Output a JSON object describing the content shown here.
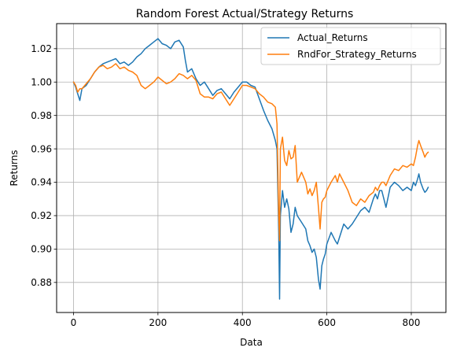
{
  "chart_data": {
    "type": "line",
    "title": "Random Forest Actual/Strategy Returns",
    "xlabel": "Data",
    "ylabel": "Returns",
    "xlim": [
      -40,
      882
    ],
    "ylim": [
      0.862,
      1.035
    ],
    "xticks": [
      0,
      200,
      400,
      600,
      800
    ],
    "yticks": [
      0.88,
      0.9,
      0.92,
      0.94,
      0.96,
      0.98,
      1.0,
      1.02
    ],
    "grid": true,
    "legend_position": "upper right",
    "series": [
      {
        "name": "Actual_Returns",
        "color": "#1f77b4",
        "points": [
          [
            0,
            1.0
          ],
          [
            5,
            0.997
          ],
          [
            10,
            0.993
          ],
          [
            15,
            0.989
          ],
          [
            20,
            0.996
          ],
          [
            30,
            0.998
          ],
          [
            40,
            1.002
          ],
          [
            50,
            1.006
          ],
          [
            60,
            1.009
          ],
          [
            70,
            1.011
          ],
          [
            80,
            1.012
          ],
          [
            90,
            1.013
          ],
          [
            100,
            1.014
          ],
          [
            110,
            1.011
          ],
          [
            120,
            1.012
          ],
          [
            130,
            1.01
          ],
          [
            140,
            1.012
          ],
          [
            150,
            1.015
          ],
          [
            160,
            1.017
          ],
          [
            170,
            1.02
          ],
          [
            180,
            1.022
          ],
          [
            190,
            1.024
          ],
          [
            200,
            1.026
          ],
          [
            210,
            1.023
          ],
          [
            220,
            1.022
          ],
          [
            230,
            1.02
          ],
          [
            240,
            1.024
          ],
          [
            250,
            1.025
          ],
          [
            260,
            1.021
          ],
          [
            265,
            1.013
          ],
          [
            270,
            1.006
          ],
          [
            280,
            1.008
          ],
          [
            290,
            1.002
          ],
          [
            300,
            0.998
          ],
          [
            310,
            1.0
          ],
          [
            320,
            0.996
          ],
          [
            330,
            0.992
          ],
          [
            340,
            0.995
          ],
          [
            350,
            0.996
          ],
          [
            360,
            0.993
          ],
          [
            370,
            0.99
          ],
          [
            380,
            0.994
          ],
          [
            390,
            0.997
          ],
          [
            400,
            1.0
          ],
          [
            410,
            1.0
          ],
          [
            420,
            0.998
          ],
          [
            430,
            0.997
          ],
          [
            440,
            0.99
          ],
          [
            450,
            0.983
          ],
          [
            460,
            0.977
          ],
          [
            470,
            0.972
          ],
          [
            478,
            0.965
          ],
          [
            482,
            0.96
          ],
          [
            486,
            0.91
          ],
          [
            488,
            0.87
          ],
          [
            490,
            0.92
          ],
          [
            495,
            0.935
          ],
          [
            500,
            0.925
          ],
          [
            505,
            0.93
          ],
          [
            510,
            0.924
          ],
          [
            515,
            0.91
          ],
          [
            520,
            0.915
          ],
          [
            525,
            0.925
          ],
          [
            530,
            0.92
          ],
          [
            540,
            0.916
          ],
          [
            550,
            0.912
          ],
          [
            555,
            0.905
          ],
          [
            560,
            0.902
          ],
          [
            565,
            0.898
          ],
          [
            570,
            0.9
          ],
          [
            575,
            0.895
          ],
          [
            580,
            0.882
          ],
          [
            584,
            0.876
          ],
          [
            588,
            0.89
          ],
          [
            592,
            0.894
          ],
          [
            596,
            0.897
          ],
          [
            600,
            0.903
          ],
          [
            610,
            0.91
          ],
          [
            620,
            0.905
          ],
          [
            625,
            0.903
          ],
          [
            630,
            0.907
          ],
          [
            640,
            0.915
          ],
          [
            650,
            0.912
          ],
          [
            660,
            0.915
          ],
          [
            670,
            0.919
          ],
          [
            680,
            0.923
          ],
          [
            690,
            0.925
          ],
          [
            700,
            0.922
          ],
          [
            710,
            0.93
          ],
          [
            715,
            0.933
          ],
          [
            720,
            0.93
          ],
          [
            725,
            0.935
          ],
          [
            730,
            0.935
          ],
          [
            735,
            0.93
          ],
          [
            740,
            0.925
          ],
          [
            750,
            0.937
          ],
          [
            760,
            0.94
          ],
          [
            770,
            0.938
          ],
          [
            780,
            0.935
          ],
          [
            790,
            0.937
          ],
          [
            800,
            0.935
          ],
          [
            805,
            0.94
          ],
          [
            810,
            0.938
          ],
          [
            815,
            0.942
          ],
          [
            818,
            0.945
          ],
          [
            822,
            0.94
          ],
          [
            828,
            0.936
          ],
          [
            832,
            0.934
          ],
          [
            836,
            0.935
          ],
          [
            840,
            0.937
          ]
        ]
      },
      {
        "name": "RndFor_Strategy_Returns",
        "color": "#ff7f0e",
        "points": [
          [
            0,
            1.0
          ],
          [
            5,
            0.998
          ],
          [
            10,
            0.994
          ],
          [
            15,
            0.996
          ],
          [
            20,
            0.996
          ],
          [
            30,
            0.999
          ],
          [
            40,
            1.002
          ],
          [
            50,
            1.006
          ],
          [
            60,
            1.009
          ],
          [
            70,
            1.01
          ],
          [
            80,
            1.008
          ],
          [
            90,
            1.009
          ],
          [
            100,
            1.011
          ],
          [
            110,
            1.008
          ],
          [
            120,
            1.009
          ],
          [
            130,
            1.007
          ],
          [
            140,
            1.006
          ],
          [
            150,
            1.004
          ],
          [
            160,
            0.998
          ],
          [
            170,
            0.996
          ],
          [
            180,
            0.998
          ],
          [
            190,
            1.0
          ],
          [
            200,
            1.003
          ],
          [
            210,
            1.001
          ],
          [
            220,
            0.999
          ],
          [
            230,
            1.0
          ],
          [
            240,
            1.002
          ],
          [
            250,
            1.005
          ],
          [
            260,
            1.004
          ],
          [
            265,
            1.003
          ],
          [
            270,
            1.002
          ],
          [
            280,
            1.004
          ],
          [
            290,
            1.001
          ],
          [
            300,
            0.993
          ],
          [
            310,
            0.991
          ],
          [
            320,
            0.991
          ],
          [
            330,
            0.99
          ],
          [
            340,
            0.993
          ],
          [
            350,
            0.994
          ],
          [
            360,
            0.99
          ],
          [
            370,
            0.986
          ],
          [
            380,
            0.99
          ],
          [
            390,
            0.994
          ],
          [
            400,
            0.998
          ],
          [
            410,
            0.998
          ],
          [
            420,
            0.997
          ],
          [
            430,
            0.996
          ],
          [
            440,
            0.993
          ],
          [
            450,
            0.991
          ],
          [
            460,
            0.988
          ],
          [
            470,
            0.987
          ],
          [
            478,
            0.985
          ],
          [
            482,
            0.975
          ],
          [
            486,
            0.92
          ],
          [
            488,
            0.905
          ],
          [
            490,
            0.96
          ],
          [
            495,
            0.967
          ],
          [
            500,
            0.953
          ],
          [
            505,
            0.95
          ],
          [
            510,
            0.959
          ],
          [
            515,
            0.954
          ],
          [
            520,
            0.955
          ],
          [
            525,
            0.962
          ],
          [
            530,
            0.94
          ],
          [
            540,
            0.946
          ],
          [
            550,
            0.94
          ],
          [
            555,
            0.933
          ],
          [
            560,
            0.936
          ],
          [
            565,
            0.932
          ],
          [
            570,
            0.935
          ],
          [
            575,
            0.94
          ],
          [
            580,
            0.925
          ],
          [
            584,
            0.912
          ],
          [
            588,
            0.928
          ],
          [
            592,
            0.93
          ],
          [
            596,
            0.931
          ],
          [
            600,
            0.935
          ],
          [
            610,
            0.94
          ],
          [
            620,
            0.944
          ],
          [
            625,
            0.94
          ],
          [
            630,
            0.945
          ],
          [
            640,
            0.94
          ],
          [
            650,
            0.935
          ],
          [
            660,
            0.928
          ],
          [
            670,
            0.926
          ],
          [
            680,
            0.93
          ],
          [
            690,
            0.928
          ],
          [
            700,
            0.932
          ],
          [
            710,
            0.934
          ],
          [
            715,
            0.937
          ],
          [
            720,
            0.935
          ],
          [
            725,
            0.938
          ],
          [
            730,
            0.94
          ],
          [
            735,
            0.94
          ],
          [
            740,
            0.938
          ],
          [
            750,
            0.944
          ],
          [
            760,
            0.948
          ],
          [
            770,
            0.947
          ],
          [
            780,
            0.95
          ],
          [
            790,
            0.949
          ],
          [
            800,
            0.951
          ],
          [
            805,
            0.95
          ],
          [
            810,
            0.955
          ],
          [
            815,
            0.962
          ],
          [
            818,
            0.965
          ],
          [
            822,
            0.962
          ],
          [
            828,
            0.958
          ],
          [
            832,
            0.955
          ],
          [
            836,
            0.957
          ],
          [
            840,
            0.958
          ]
        ]
      }
    ]
  }
}
